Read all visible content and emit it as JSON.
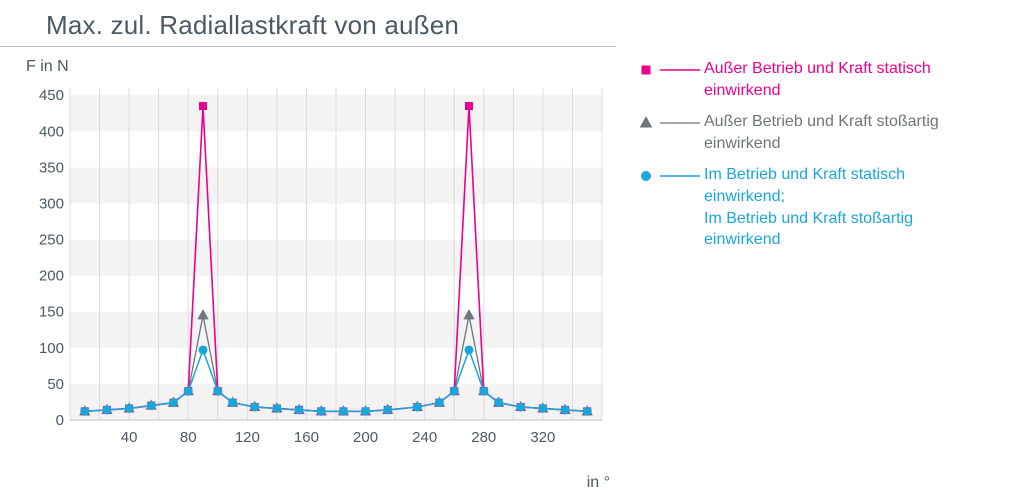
{
  "chart": {
    "type": "line",
    "title": "Max. zul. Radiallastkraft von außen",
    "title_color": "#4a5a66",
    "title_fontsize": 26,
    "y_axis_label": "F in N",
    "x_axis_label": "in °",
    "label_color": "#4a5a66",
    "label_fontsize": 16,
    "background_color": "#ffffff",
    "plot_bg_band_color": "#f3f3f3",
    "plot_bg_band_alt": "#ffffff",
    "gridline_color": "#dcdcdc",
    "axis_line_color": "#b8c0c6",
    "x_range": [
      0,
      360
    ],
    "y_range": [
      0,
      460
    ],
    "y_ticks": [
      0,
      50,
      100,
      150,
      200,
      250,
      300,
      350,
      400,
      450
    ],
    "x_ticks_minor": [
      0,
      20,
      40,
      60,
      80,
      100,
      120,
      140,
      160,
      180,
      200,
      220,
      240,
      260,
      280,
      300,
      320,
      340,
      360
    ],
    "x_ticks_labeled": [
      40,
      80,
      120,
      160,
      200,
      240,
      280,
      320
    ],
    "tick_fontsize": 15,
    "tick_color": "#4a5a66",
    "x_categories": [
      10,
      25,
      40,
      55,
      70,
      80,
      90,
      100,
      110,
      125,
      140,
      155,
      170,
      185,
      200,
      215,
      235,
      250,
      260,
      270,
      280,
      290,
      305,
      320,
      335,
      350
    ],
    "series": [
      {
        "id": "s1",
        "label": "Außer Betrieb und Kraft statisch einwirkend",
        "color": "#ec008c",
        "marker": "square",
        "marker_size": 8,
        "line_width": 1.6,
        "values": [
          12,
          14,
          16,
          20,
          24,
          40,
          435,
          40,
          24,
          18,
          16,
          14,
          12,
          12,
          12,
          14,
          18,
          24,
          40,
          435,
          40,
          24,
          18,
          16,
          14,
          12
        ]
      },
      {
        "id": "s2",
        "label": "Außer Betrieb und Kraft stoßartig einwirkend",
        "color": "#6e757c",
        "marker": "triangle",
        "marker_size": 9,
        "line_width": 1.3,
        "values": [
          12,
          14,
          16,
          20,
          24,
          40,
          145,
          40,
          24,
          18,
          16,
          14,
          12,
          12,
          12,
          14,
          18,
          24,
          40,
          145,
          40,
          24,
          18,
          16,
          14,
          12
        ]
      },
      {
        "id": "s3",
        "label": "Im Betrieb und Kraft statisch einwirkend;\nIm Betrieb und Kraft stoßartig einwirkend",
        "color": "#1ba6d9",
        "marker": "circle",
        "marker_size": 9,
        "line_width": 1.5,
        "values": [
          12,
          14,
          16,
          20,
          24,
          40,
          97,
          40,
          24,
          18,
          16,
          14,
          12,
          12,
          12,
          14,
          18,
          24,
          40,
          97,
          40,
          24,
          18,
          16,
          14,
          12
        ]
      }
    ]
  },
  "legend": {
    "items": [
      {
        "series_ref": "s1",
        "text_color": "#ec008c"
      },
      {
        "series_ref": "s2",
        "text_color": "#6e757c"
      },
      {
        "series_ref": "s3",
        "text_color": "#1ba6d9"
      }
    ]
  }
}
